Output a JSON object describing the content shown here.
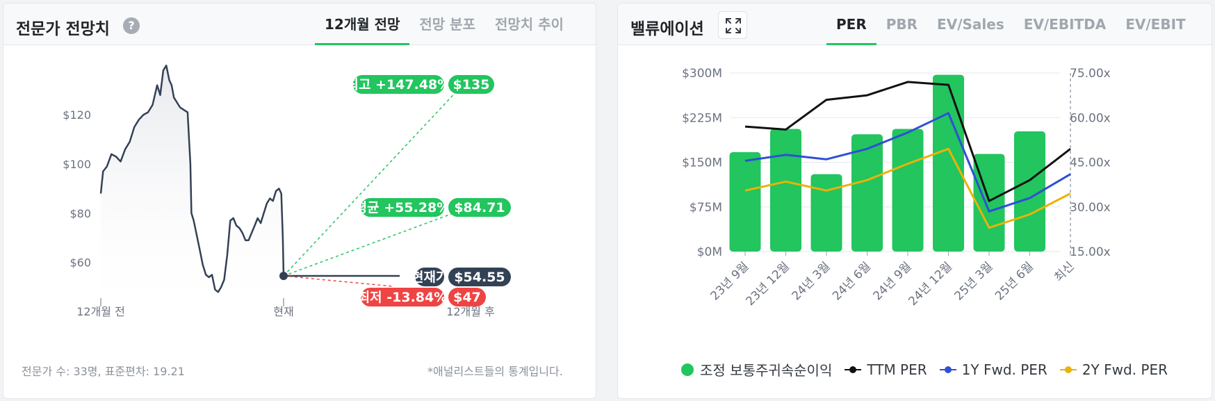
{
  "left_card": {
    "title": "전문가 전망치",
    "help_icon": "question-circle-icon",
    "tabs": [
      {
        "label": "12개월 전망",
        "active": true
      },
      {
        "label": "전망 분포",
        "active": false
      },
      {
        "label": "전망치 추이",
        "active": false
      }
    ],
    "footer_left": "전문가 수: 33명, 표준편차: 19.21",
    "footer_right": "*애널리스트들의 통계입니다."
  },
  "right_card": {
    "title": "밸류에이션",
    "expand_icon": "expand-icon",
    "tabs": [
      {
        "label": "PER",
        "active": true
      },
      {
        "label": "PBR",
        "active": false
      },
      {
        "label": "EV/Sales",
        "active": false
      },
      {
        "label": "EV/EBITDA",
        "active": false
      },
      {
        "label": "EV/EBIT",
        "active": false
      }
    ]
  },
  "colors": {
    "accent_green": "#22c55e",
    "red": "#ef4444",
    "dark": "#334155",
    "ttm": "#111111",
    "fwd1": "#2f4fd6",
    "fwd2": "#eab308"
  },
  "chart_data": [
    {
      "type": "line",
      "xlim": [
        -12,
        12
      ],
      "ylim": [
        44,
        142
      ],
      "yticks": [
        {
          "value": 120,
          "label": "$120"
        },
        {
          "value": 100,
          "label": "$100"
        },
        {
          "value": 80,
          "label": "$80"
        },
        {
          "value": 60,
          "label": "$60"
        }
      ],
      "xticks": [
        {
          "value": -12,
          "label": "12개월 전"
        },
        {
          "value": 0,
          "label": "현재"
        },
        {
          "value": 12,
          "label": "12개월 후"
        }
      ],
      "price_history": {
        "x": [
          -12.0,
          -11.85,
          -11.6,
          -11.3,
          -11.0,
          -10.7,
          -10.4,
          -10.1,
          -9.8,
          -9.5,
          -9.2,
          -8.9,
          -8.6,
          -8.3,
          -8.1,
          -7.9,
          -7.7,
          -7.5,
          -7.35,
          -7.2,
          -7.0,
          -6.8,
          -6.55,
          -6.3,
          -6.12,
          -6.05,
          -5.9,
          -5.7,
          -5.5,
          -5.3,
          -5.1,
          -4.9,
          -4.7,
          -4.5,
          -4.3,
          -4.1,
          -3.9,
          -3.7,
          -3.5,
          -3.3,
          -3.1,
          -2.9,
          -2.7,
          -2.5,
          -2.3,
          -2.1,
          -1.9,
          -1.7,
          -1.5,
          -1.3,
          -1.1,
          -0.9,
          -0.7,
          -0.5,
          -0.3,
          -0.15,
          -0.05,
          0.0
        ],
        "y": [
          88,
          97,
          99,
          104,
          103,
          101,
          106,
          109,
          115,
          118,
          120,
          121,
          124,
          132,
          128,
          138,
          140,
          134,
          132,
          127,
          125,
          123,
          122,
          121,
          100,
          80,
          77,
          71,
          65,
          59,
          55,
          54,
          55,
          49,
          48,
          50,
          53,
          63,
          77,
          78,
          75,
          74,
          72,
          69,
          69,
          72,
          75,
          78,
          76,
          80,
          84,
          86,
          85,
          89,
          90,
          88,
          70,
          54.55
        ]
      },
      "current_price": 54.55,
      "targets": [
        {
          "name": "최고",
          "change": "+147.48%",
          "price_label": "$135",
          "value": 135,
          "kind": "high"
        },
        {
          "name": "평균",
          "change": "+55.28%",
          "price_label": "$84.71",
          "value": 84.71,
          "kind": "mean"
        },
        {
          "name": "현재가",
          "change": "",
          "price_label": "$54.55",
          "value": 54.55,
          "kind": "current"
        },
        {
          "name": "최저",
          "change": "-13.84%",
          "price_label": "$47",
          "value": 47,
          "kind": "low"
        }
      ]
    },
    {
      "type": "bar",
      "categories": [
        "23년 9월",
        "23년 12월",
        "24년 3월",
        "24년 6월",
        "24년 9월",
        "24년 12월",
        "25년 3월",
        "25년 6월",
        "최신"
      ],
      "ylim": [
        0,
        300
      ],
      "y2lim": [
        15,
        75
      ],
      "yticks_left": [
        {
          "value": 300,
          "label": "$300M"
        },
        {
          "value": 225,
          "label": "$225M"
        },
        {
          "value": 150,
          "label": "$150M"
        },
        {
          "value": 75,
          "label": "$75M"
        },
        {
          "value": 0,
          "label": "$0M"
        }
      ],
      "yticks_right": [
        {
          "value": 75,
          "label": "75.00x"
        },
        {
          "value": 60,
          "label": "60.00x"
        },
        {
          "value": 45,
          "label": "45.00x"
        },
        {
          "value": 30,
          "label": "30.00x"
        },
        {
          "value": 15,
          "label": "15.00x"
        }
      ],
      "bars": {
        "name": "조정 보통주귀속순이익",
        "values": [
          167,
          206,
          130,
          197,
          206,
          297,
          164,
          202,
          null
        ]
      },
      "series": [
        {
          "name": "TTM PER",
          "values": [
            57,
            56,
            66,
            67.5,
            72,
            71,
            32,
            39,
            49.5
          ]
        },
        {
          "name": "1Y Fwd. PER",
          "values": [
            45.5,
            47.5,
            46,
            49.5,
            55,
            61.5,
            28.5,
            33,
            41
          ]
        },
        {
          "name": "2Y Fwd. PER",
          "values": [
            35.5,
            38.5,
            35.5,
            39,
            44.5,
            49.5,
            23,
            27.5,
            34.5
          ]
        }
      ],
      "latest_marker": "최신"
    }
  ]
}
